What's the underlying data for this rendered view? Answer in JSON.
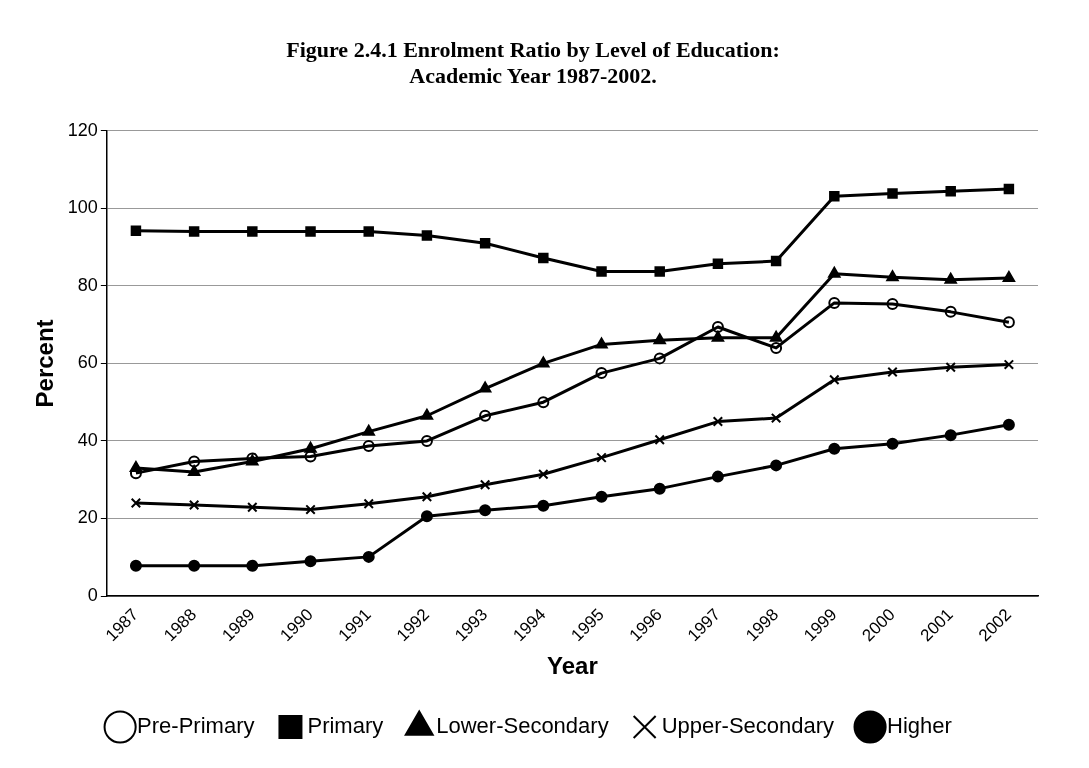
{
  "chart_data": {
    "type": "line",
    "title": [
      "Figure 2.4.1 Enrolment Ratio by Level of Education:",
      "Academic Year 1987-2002."
    ],
    "xlabel": "Year",
    "ylabel": "Percent",
    "categories": [
      "1987",
      "1988",
      "1989",
      "1990",
      "1991",
      "1992",
      "1993",
      "1994",
      "1995",
      "1996",
      "1997",
      "1998",
      "1999",
      "2000",
      "2001",
      "2002"
    ],
    "series": [
      {
        "name": "Pre-Primary",
        "color": "#000000",
        "marker": "circle-open",
        "values": [
          31.7,
          34.7,
          35.5,
          36,
          38.7,
          40,
          46.5,
          50,
          57.5,
          61.3,
          69.4,
          64,
          75.6,
          75.3,
          73.3,
          70.6
        ]
      },
      {
        "name": "Primary",
        "color": "#000000",
        "marker": "square",
        "values": [
          94.2,
          94,
          94,
          94,
          94,
          93,
          91,
          87.2,
          83.7,
          83.7,
          85.7,
          86.4,
          103.1,
          103.8,
          104.4,
          105
        ]
      },
      {
        "name": "Lower-Secondary",
        "color": "#000000",
        "marker": "triangle",
        "values": [
          33,
          32,
          34.7,
          38,
          42.4,
          46.5,
          53.5,
          60,
          64.9,
          66,
          66.6,
          66.6,
          83.1,
          82.2,
          81.6,
          82
        ]
      },
      {
        "name": "Upper-Secondary",
        "color": "#000000",
        "marker": "cross",
        "values": [
          24,
          23.5,
          22.9,
          22.3,
          23.8,
          25.6,
          28.7,
          31.4,
          35.7,
          40.3,
          45,
          45.9,
          55.8,
          57.8,
          59,
          59.7
        ]
      },
      {
        "name": "Higher",
        "color": "#000000",
        "marker": "circle",
        "values": [
          7.8,
          7.8,
          7.8,
          9,
          10.1,
          20.6,
          22.1,
          23.3,
          25.6,
          27.7,
          30.8,
          33.7,
          38,
          39.3,
          41.5,
          44.2
        ]
      }
    ],
    "ylim": [
      0,
      120
    ],
    "yticks": [
      0,
      20,
      40,
      60,
      80,
      100,
      120
    ],
    "grid": "y",
    "legend": "bottom",
    "line_style": "solid"
  }
}
